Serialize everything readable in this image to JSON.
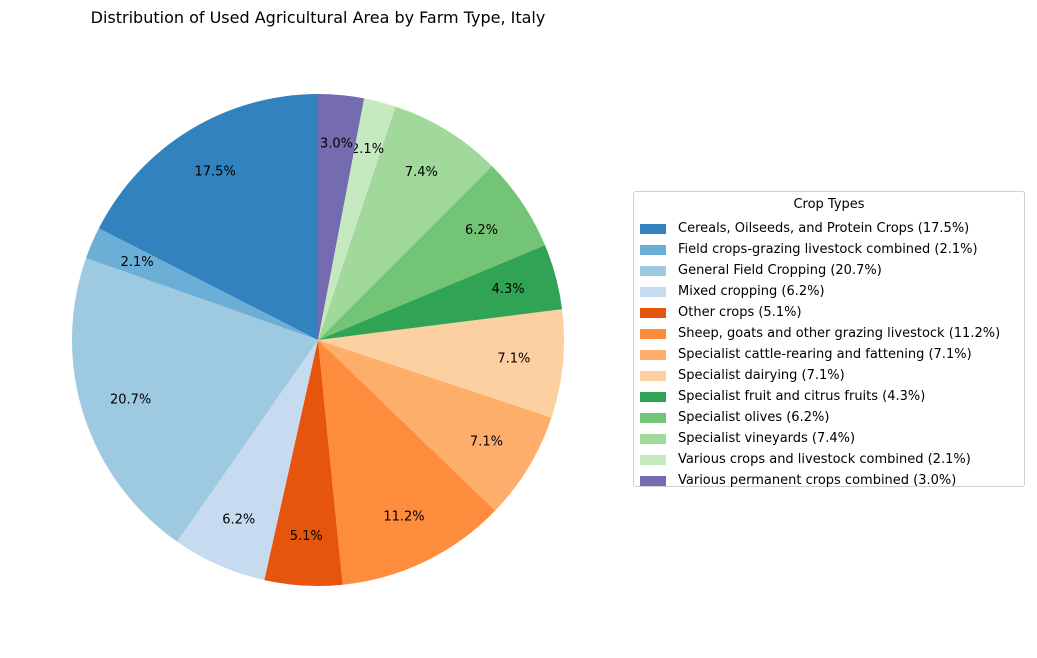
{
  "chart_data": {
    "type": "pie",
    "title": "Distribution of Used Agricultural Area by Farm Type, Italy",
    "legend_title": "Crop Types",
    "legend_position": "right",
    "start_angle": "top",
    "direction": "counterclockwise",
    "slices": [
      {
        "label": "Cereals, Oilseeds, and Protein Crops",
        "value": 17.5,
        "pct_label": "17.5%",
        "legend": "Cereals, Oilseeds, and Protein Crops (17.5%)",
        "color": "#3182bd"
      },
      {
        "label": "Field crops-grazing livestock combined",
        "value": 2.1,
        "pct_label": "2.1%",
        "legend": "Field crops-grazing livestock combined (2.1%)",
        "color": "#6baed6"
      },
      {
        "label": "General Field Cropping",
        "value": 20.7,
        "pct_label": "20.7%",
        "legend": "General Field Cropping (20.7%)",
        "color": "#9ecae1"
      },
      {
        "label": "Mixed cropping",
        "value": 6.2,
        "pct_label": "6.2%",
        "legend": "Mixed cropping (6.2%)",
        "color": "#c6dbef"
      },
      {
        "label": "Other crops",
        "value": 5.1,
        "pct_label": "5.1%",
        "legend": "Other crops (5.1%)",
        "color": "#e6550d"
      },
      {
        "label": "Sheep, goats and other grazing livestock",
        "value": 11.2,
        "pct_label": "11.2%",
        "legend": "Sheep, goats and other grazing livestock (11.2%)",
        "color": "#fd8d3c"
      },
      {
        "label": "Specialist cattle-rearing and fattening",
        "value": 7.1,
        "pct_label": "7.1%",
        "legend": "Specialist cattle-rearing and fattening (7.1%)",
        "color": "#fdae6b"
      },
      {
        "label": "Specialist dairying",
        "value": 7.1,
        "pct_label": "7.1%",
        "legend": "Specialist dairying (7.1%)",
        "color": "#fdd0a2"
      },
      {
        "label": "Specialist fruit and citrus fruits",
        "value": 4.3,
        "pct_label": "4.3%",
        "legend": "Specialist fruit and citrus fruits (4.3%)",
        "color": "#31a354"
      },
      {
        "label": "Specialist olives",
        "value": 6.2,
        "pct_label": "6.2%",
        "legend": "Specialist olives (6.2%)",
        "color": "#74c476"
      },
      {
        "label": "Specialist vineyards",
        "value": 7.4,
        "pct_label": "7.4%",
        "legend": "Specialist vineyards (7.4%)",
        "color": "#a1d99b"
      },
      {
        "label": "Various crops and livestock combined",
        "value": 2.1,
        "pct_label": "2.1%",
        "legend": "Various crops and livestock combined (2.1%)",
        "color": "#c7e9c0"
      },
      {
        "label": "Various permanent crops combined",
        "value": 3.0,
        "pct_label": "3.0%",
        "legend": "Various permanent crops combined (3.0%)",
        "color": "#756bb1"
      }
    ]
  }
}
